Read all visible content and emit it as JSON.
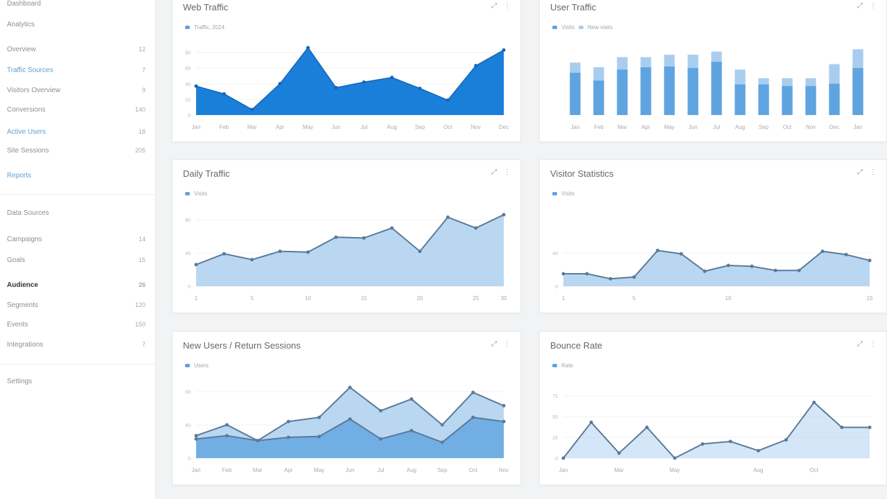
{
  "sidebar": {
    "items": [
      {
        "label": "Dashboard",
        "count": "",
        "style": ""
      },
      {
        "label": "Analytics",
        "count": "",
        "style": ""
      },
      {
        "label": "Overview",
        "count": "12",
        "style": ""
      },
      {
        "label": "Traffic Sources",
        "count": "7",
        "style": "blue"
      },
      {
        "label": "Visitors Overview",
        "count": "9",
        "style": ""
      },
      {
        "label": "Conversions",
        "count": "140",
        "style": ""
      },
      {
        "label": "Active Users",
        "count": "18",
        "style": "blue"
      },
      {
        "label": "Site Sessions",
        "count": "205",
        "style": ""
      },
      {
        "label": "Reports",
        "count": "",
        "style": "blue"
      },
      {
        "label": "Data Sources",
        "count": "",
        "style": ""
      },
      {
        "label": "Campaigns",
        "count": "14",
        "style": ""
      },
      {
        "label": "Goals",
        "count": "15",
        "style": ""
      },
      {
        "label": "Audience",
        "count": "26",
        "style": "dark"
      },
      {
        "label": "Segments",
        "count": "120",
        "style": ""
      },
      {
        "label": "Events",
        "count": "150",
        "style": ""
      },
      {
        "label": "Integrations",
        "count": "7",
        "style": ""
      },
      {
        "label": "Settings",
        "count": "",
        "style": ""
      }
    ]
  },
  "colors": {
    "primary": "#1a7fd9",
    "light": "#a9cdef",
    "mid": "#5fa4e0",
    "line": "#5a7a99"
  },
  "panels": [
    {
      "title": "Web Traffic",
      "legend": [
        "Traffic, 2024"
      ]
    },
    {
      "title": "User Traffic",
      "legend": [
        "Visits",
        "New visits"
      ]
    },
    {
      "title": "Daily Traffic",
      "legend": [
        "Visits"
      ]
    },
    {
      "title": "Visitor Statistics",
      "legend": [
        "Visits"
      ]
    },
    {
      "title": "New Users / Return Sessions",
      "legend": [
        "Users"
      ]
    },
    {
      "title": "Bounce Rate",
      "legend": [
        "Rate"
      ]
    }
  ],
  "chart_data": [
    {
      "type": "area",
      "categories": [
        "Jan",
        "Feb",
        "Mar",
        "Apr",
        "May",
        "Jun",
        "Jul",
        "Aug",
        "Sep",
        "Oct",
        "Nov",
        "Dec"
      ],
      "values": [
        37,
        27,
        7,
        40,
        86,
        35,
        42,
        48,
        34,
        19,
        63,
        83
      ],
      "ylim": [
        0,
        100
      ],
      "yticks": [
        0,
        20,
        40,
        60,
        80
      ]
    },
    {
      "type": "bar",
      "categories": [
        "Jan",
        "Feb",
        "Mar",
        "Apr",
        "May",
        "Jun",
        "Jul",
        "Aug",
        "Sep",
        "Oct",
        "Nov",
        "Dec",
        "Jan"
      ],
      "series": [
        {
          "values": [
            67,
            61,
            74,
            74,
            77,
            77,
            81,
            58,
            47,
            47,
            47,
            65,
            84
          ]
        },
        {
          "values": [
            54,
            44,
            58,
            61,
            62,
            60,
            68,
            39,
            39,
            37,
            37,
            40,
            60
          ]
        }
      ],
      "ylim": [
        0,
        100
      ]
    },
    {
      "type": "area",
      "categories": [
        "1",
        "",
        "5",
        "",
        "10",
        "",
        "15",
        "",
        "20",
        "",
        "25",
        "30"
      ],
      "values": [
        26,
        39,
        32,
        42,
        41,
        59,
        58,
        70,
        42,
        83,
        70,
        86
      ],
      "ylim": [
        0,
        100
      ],
      "yticks": [
        0,
        40,
        80
      ]
    },
    {
      "type": "area",
      "categories": [
        "1",
        "",
        "",
        "5",
        "",
        "",
        "",
        "10",
        "",
        "",
        "",
        "",
        "",
        "15"
      ],
      "values": [
        15,
        15,
        9,
        11,
        43,
        39,
        18,
        25,
        24,
        19,
        19,
        42,
        38,
        31
      ],
      "ylim": [
        0,
        100
      ],
      "yticks": [
        0,
        40
      ]
    },
    {
      "type": "area",
      "categories": [
        "Jan",
        "Feb",
        "Mar",
        "Apr",
        "May",
        "Jun",
        "Jul",
        "Aug",
        "Sep",
        "Oct",
        "Nov"
      ],
      "series": [
        {
          "values": [
            27,
            40,
            21,
            44,
            49,
            85,
            57,
            71,
            40,
            79,
            63
          ]
        },
        {
          "values": [
            23,
            27,
            21,
            25,
            26,
            47,
            23,
            33,
            19,
            49,
            44
          ]
        }
      ],
      "ylim": [
        0,
        100
      ],
      "yticks": [
        0,
        40,
        80
      ]
    },
    {
      "type": "area",
      "categories": [
        "Jan",
        "",
        "Mar",
        "",
        "May",
        "",
        "",
        "Aug",
        "",
        "Oct",
        "",
        ""
      ],
      "values": [
        0,
        43,
        6,
        37,
        0,
        17,
        20,
        9,
        22,
        67,
        37,
        37
      ],
      "ylim": [
        0,
        100
      ],
      "yticks": [
        0,
        25,
        50,
        75
      ]
    }
  ]
}
